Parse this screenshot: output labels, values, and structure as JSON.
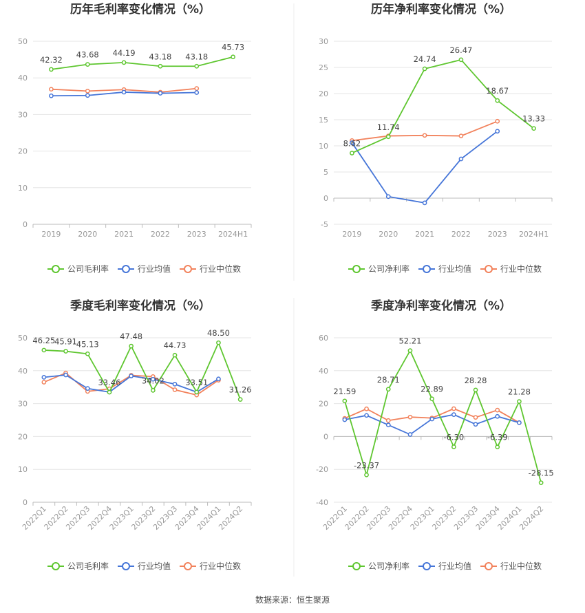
{
  "source": "数据来源：恒生聚源",
  "legend_names": {
    "gross": [
      "公司毛利率",
      "行业均值",
      "行业中位数"
    ],
    "net": [
      "公司净利率",
      "行业均值",
      "行业中位数"
    ]
  },
  "colors": {
    "company": "#5ec62f",
    "mean": "#4575d8",
    "median": "#f2825c",
    "grid": "#e6e6e6",
    "axis": "#bbbbbb"
  },
  "chart_data": [
    {
      "id": "annual-gross",
      "type": "line",
      "title": "历年毛利率变化情况（%）",
      "categories": [
        "2019",
        "2020",
        "2021",
        "2022",
        "2023",
        "2024H1"
      ],
      "ylim": [
        0,
        50
      ],
      "yticks": [
        0,
        10,
        20,
        30,
        40,
        50
      ],
      "grid": true,
      "legend": "bottom",
      "series": [
        {
          "name": "公司毛利率",
          "values": [
            42.32,
            43.68,
            44.19,
            43.18,
            43.18,
            45.73
          ],
          "labels": [
            "42.32",
            "43.68",
            "44.19",
            "43.18",
            "43.18",
            "45.73"
          ]
        },
        {
          "name": "行业均值",
          "values": [
            35.1,
            35.2,
            36.1,
            35.8,
            36.0,
            null
          ]
        },
        {
          "name": "行业中位数",
          "values": [
            36.9,
            36.4,
            36.8,
            36.1,
            37.1,
            null
          ]
        }
      ]
    },
    {
      "id": "annual-net",
      "type": "line",
      "title": "历年净利率变化情况（%）",
      "categories": [
        "2019",
        "2020",
        "2021",
        "2022",
        "2023",
        "2024H1"
      ],
      "ylim": [
        -5,
        30
      ],
      "yticks": [
        -5,
        0,
        5,
        10,
        15,
        20,
        25,
        30
      ],
      "grid": true,
      "legend": "bottom",
      "series": [
        {
          "name": "公司净利率",
          "values": [
            8.62,
            11.74,
            24.74,
            26.47,
            18.67,
            13.33
          ],
          "labels": [
            "8.62",
            "11.74",
            "24.74",
            "26.47",
            "18.67",
            "13.33"
          ]
        },
        {
          "name": "行业均值",
          "values": [
            10.6,
            0.3,
            -0.9,
            7.5,
            12.8,
            null
          ]
        },
        {
          "name": "行业中位数",
          "values": [
            11.0,
            11.9,
            12.0,
            11.9,
            14.7,
            null
          ]
        }
      ]
    },
    {
      "id": "quarterly-gross",
      "type": "line",
      "title": "季度毛利率变化情况（%）",
      "categories": [
        "2022Q1",
        "2022Q2",
        "2022Q3",
        "2022Q4",
        "2023Q1",
        "2023Q2",
        "2023Q3",
        "2023Q4",
        "2024Q1",
        "2024Q2"
      ],
      "ylim": [
        0,
        50
      ],
      "yticks": [
        0,
        10,
        20,
        30,
        40,
        50
      ],
      "grid": true,
      "legend": "bottom",
      "series": [
        {
          "name": "公司毛利率",
          "values": [
            46.25,
            45.91,
            45.13,
            33.46,
            47.48,
            34.02,
            44.73,
            33.51,
            48.5,
            31.26
          ],
          "labels": [
            "46.25",
            "45.91",
            "45.13",
            "33.46",
            "47.48",
            "34.02",
            "44.73",
            "33.51",
            "48.50",
            "31.26"
          ]
        },
        {
          "name": "行业均值",
          "values": [
            38.0,
            38.7,
            34.6,
            33.5,
            38.4,
            37.4,
            35.9,
            33.5,
            37.5,
            null
          ]
        },
        {
          "name": "行业中位数",
          "values": [
            36.5,
            39.3,
            33.7,
            34.5,
            38.6,
            38.2,
            34.2,
            32.6,
            37.1,
            null
          ]
        }
      ]
    },
    {
      "id": "quarterly-net",
      "type": "line",
      "title": "季度净利率变化情况（%）",
      "categories": [
        "2022Q1",
        "2022Q2",
        "2022Q3",
        "2022Q4",
        "2023Q1",
        "2023Q2",
        "2023Q3",
        "2023Q4",
        "2024Q1",
        "2024Q2"
      ],
      "ylim": [
        -40,
        60
      ],
      "yticks": [
        -40,
        -20,
        0,
        20,
        40,
        60
      ],
      "grid": true,
      "legend": "bottom",
      "series": [
        {
          "name": "公司净利率",
          "values": [
            21.59,
            -23.37,
            28.71,
            52.21,
            22.89,
            -6.3,
            28.28,
            -6.39,
            21.28,
            -28.15
          ],
          "labels": [
            "21.59",
            "-23.37",
            "28.71",
            "52.21",
            "22.89",
            "-6.30",
            "28.28",
            "-6.39",
            "21.28",
            "-28.15"
          ]
        },
        {
          "name": "行业均值",
          "values": [
            10.2,
            12.8,
            7.0,
            1.2,
            10.6,
            13.3,
            7.4,
            12.2,
            8.4,
            null
          ]
        },
        {
          "name": "行业中位数",
          "values": [
            11.0,
            16.8,
            9.7,
            11.8,
            11.2,
            16.9,
            11.6,
            16.0,
            8.4,
            null
          ]
        }
      ]
    }
  ]
}
